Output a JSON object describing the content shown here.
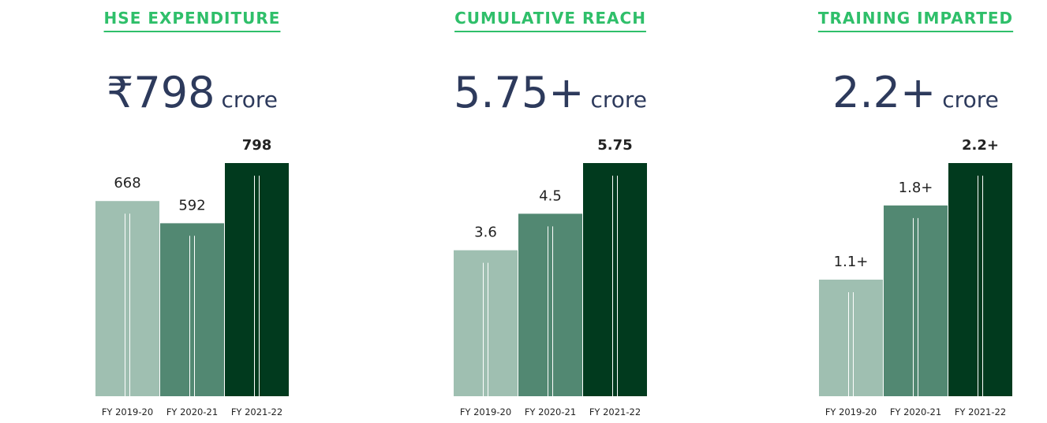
{
  "chart_data": [
    {
      "type": "bar",
      "title": "HSE EXPENDITURE",
      "headline": {
        "figure": "₹798",
        "unit": "crore"
      },
      "categories": [
        "FY 2019-20",
        "FY 2020-21",
        "FY 2021-22"
      ],
      "values": [
        668,
        592,
        798
      ],
      "colors": [
        "#9fbfb1",
        "#528872",
        "#013a1e"
      ]
    },
    {
      "type": "bar",
      "title": "CUMULATIVE REACH",
      "headline": {
        "figure": "5.75+",
        "unit": "crore"
      },
      "categories": [
        "FY 2019-20",
        "FY 2020-21",
        "FY 2021-22"
      ],
      "values": [
        3.6,
        4.5,
        5.75
      ],
      "colors": [
        "#9fbfb1",
        "#528872",
        "#013a1e"
      ]
    },
    {
      "type": "bar",
      "title": "TRAINING IMPARTED",
      "headline": {
        "figure": "2.2+",
        "unit": "crore"
      },
      "categories": [
        "FY 2019-20",
        "FY 2020-21",
        "FY 2021-22"
      ],
      "values": [
        1.1,
        1.8,
        2.2
      ],
      "value_labels": [
        "1.1+",
        "1.8+",
        "2.2+"
      ],
      "colors": [
        "#9fbfb1",
        "#528872",
        "#013a1e"
      ]
    }
  ]
}
